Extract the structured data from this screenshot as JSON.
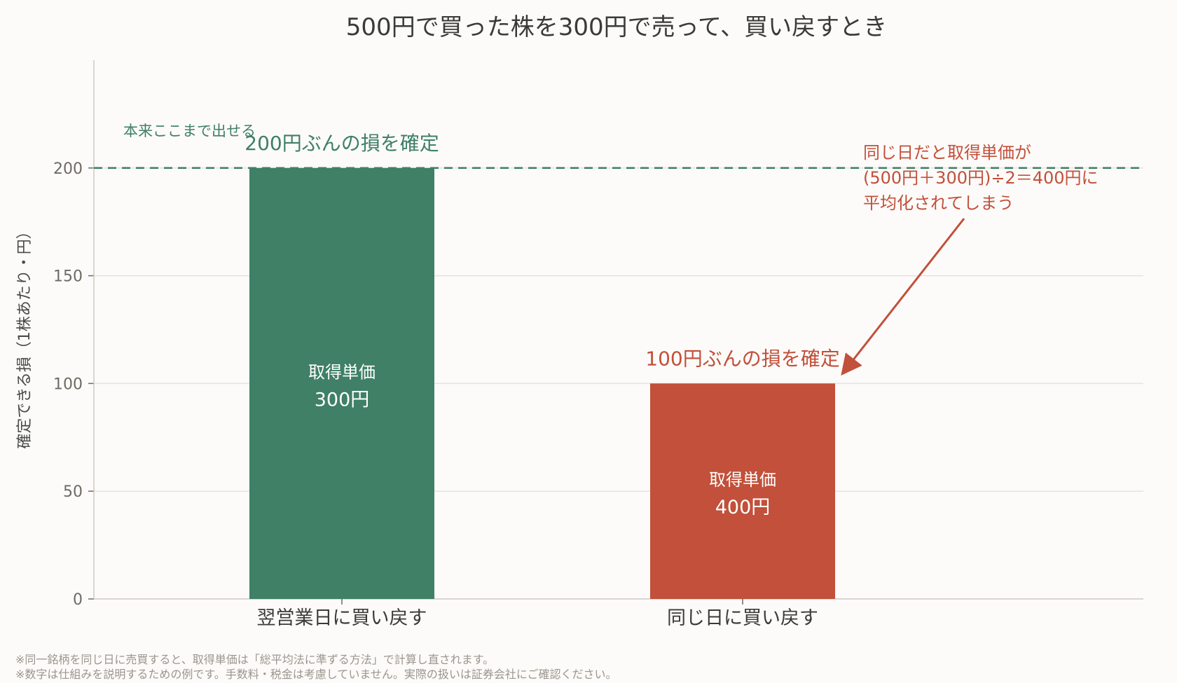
{
  "chart_data": {
    "type": "bar",
    "title": "500円で買った株を300円で売って、買い戻すとき",
    "ylabel": "確定できる損（1株あたり・円）",
    "xlabel": "",
    "categories": [
      "翌営業日に買い戻す",
      "同じ日に買い戻す"
    ],
    "values": [
      200,
      100
    ],
    "bar_colors": [
      "#3f8066",
      "#c2503a"
    ],
    "bar_labels": [
      {
        "line1": "取得単価",
        "line2": "300円"
      },
      {
        "line1": "取得単価",
        "line2": "400円"
      }
    ],
    "bar_top_labels": [
      "200円ぶんの損を確定",
      "100円ぶんの損を確定"
    ],
    "ylim": [
      0,
      250
    ],
    "yticks": [
      0,
      50,
      100,
      150,
      200
    ],
    "grid": true,
    "reference_line": {
      "value": 200,
      "style": "dashed",
      "color": "#3f8066",
      "label": "本来ここまで出せる"
    },
    "annotation": {
      "lines": [
        "同じ日だと取得単価が",
        "(500円＋300円)÷2＝400円に",
        "平均化されてしまう"
      ],
      "color": "#c2503a",
      "arrow_to_category": "同じ日に買い戻す",
      "arrow_to_value": 100
    }
  },
  "footnotes": [
    "※同一銘柄を同じ日に売買すると、取得単価は「総平均法に準ずる方法」で計算し直されます。",
    "※数字は仕組みを説明するための例です。手数料・税金は考慮していません。実際の扱いは証券会社にご確認ください。"
  ],
  "colors": {
    "background": "#fcfbf9",
    "grid": "#e6e3dd",
    "axis": "#cfc9c0"
  }
}
